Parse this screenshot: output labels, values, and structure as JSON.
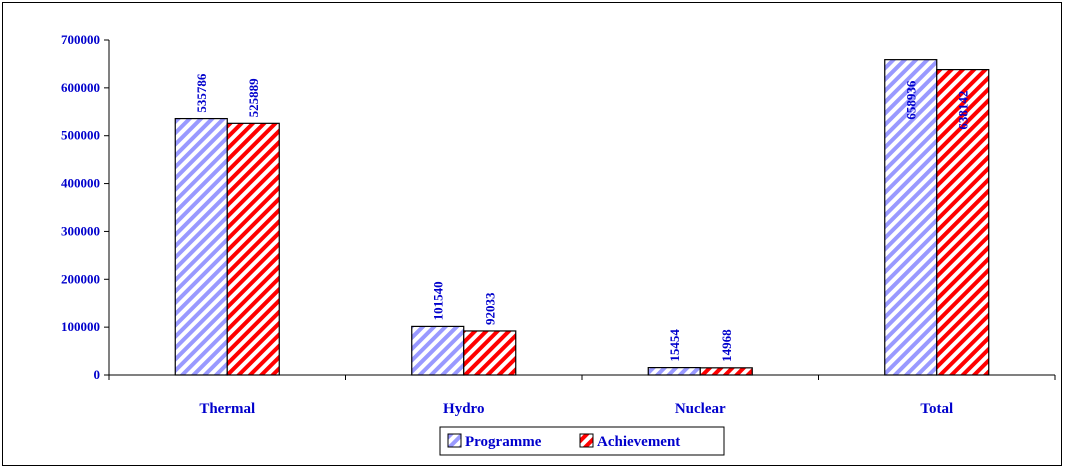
{
  "chart_data": {
    "type": "bar",
    "categories": [
      "Thermal",
      "Hydro",
      "Nuclear",
      "Total"
    ],
    "series": [
      {
        "name": "Programme",
        "values": [
          535786,
          101540,
          15454,
          658936
        ],
        "color": "#9999ff",
        "pattern": "diagonal-hatch"
      },
      {
        "name": "Achievement",
        "values": [
          525889,
          92033,
          14968,
          638142
        ],
        "color": "#ff0000",
        "pattern": "diagonal-hatch"
      }
    ],
    "ylim": [
      0,
      700000
    ],
    "yticks": [
      "0",
      "100000",
      "200000",
      "300000",
      "400000",
      "500000",
      "600000",
      "700000"
    ],
    "ytick_values": [
      0,
      100000,
      200000,
      300000,
      400000,
      500000,
      600000,
      700000
    ],
    "grid": false,
    "legend_position": "bottom-center",
    "data_label_color": "#0000cc",
    "axis_label_color": "#0000cc"
  }
}
